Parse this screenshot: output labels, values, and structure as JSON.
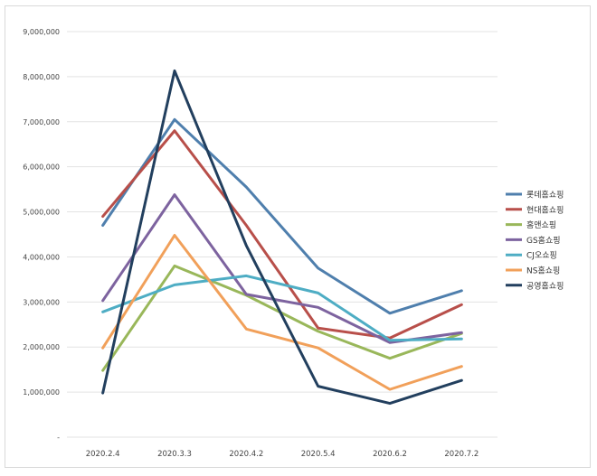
{
  "chart_data": {
    "type": "line",
    "title": "",
    "xlabel": "",
    "ylabel": "",
    "categories": [
      "2020.2.4",
      "2020.3.3",
      "2020.4.2",
      "2020.5.4",
      "2020.6.2",
      "2020.7.2"
    ],
    "ylim": [
      0,
      9000000
    ],
    "yticks": [
      0,
      1000000,
      2000000,
      3000000,
      4000000,
      5000000,
      6000000,
      7000000,
      8000000,
      9000000
    ],
    "ytick_labels": [
      "-",
      "1,000,000",
      "2,000,000",
      "3,000,000",
      "4,000,000",
      "5,000,000",
      "6,000,000",
      "7,000,000",
      "8,000,000",
      "9,000,000"
    ],
    "grid": true,
    "legend_position": "right",
    "series": [
      {
        "name": "롯데홈쇼핑",
        "color": "#4f7fad",
        "values": [
          4700000,
          7050000,
          5550000,
          3750000,
          2750000,
          3250000
        ]
      },
      {
        "name": "현대홈쇼핑",
        "color": "#b84f4a",
        "values": [
          4900000,
          6800000,
          4700000,
          2420000,
          2200000,
          2940000
        ]
      },
      {
        "name": "홈앤쇼핑",
        "color": "#99b75a",
        "values": [
          1480000,
          3800000,
          3150000,
          2350000,
          1750000,
          2300000
        ]
      },
      {
        "name": "GS홈쇼핑",
        "color": "#7d639f",
        "values": [
          3030000,
          5380000,
          3170000,
          2880000,
          2100000,
          2320000
        ]
      },
      {
        "name": "CJ오쇼핑",
        "color": "#4eadc4",
        "values": [
          2780000,
          3380000,
          3580000,
          3200000,
          2150000,
          2180000
        ]
      },
      {
        "name": "NS홈쇼핑",
        "color": "#f1a05a",
        "values": [
          1980000,
          4480000,
          2400000,
          1980000,
          1060000,
          1570000
        ]
      },
      {
        "name": "공영홈쇼핑",
        "color": "#223f5e",
        "values": [
          980000,
          8130000,
          4250000,
          1130000,
          750000,
          1260000
        ]
      }
    ]
  }
}
